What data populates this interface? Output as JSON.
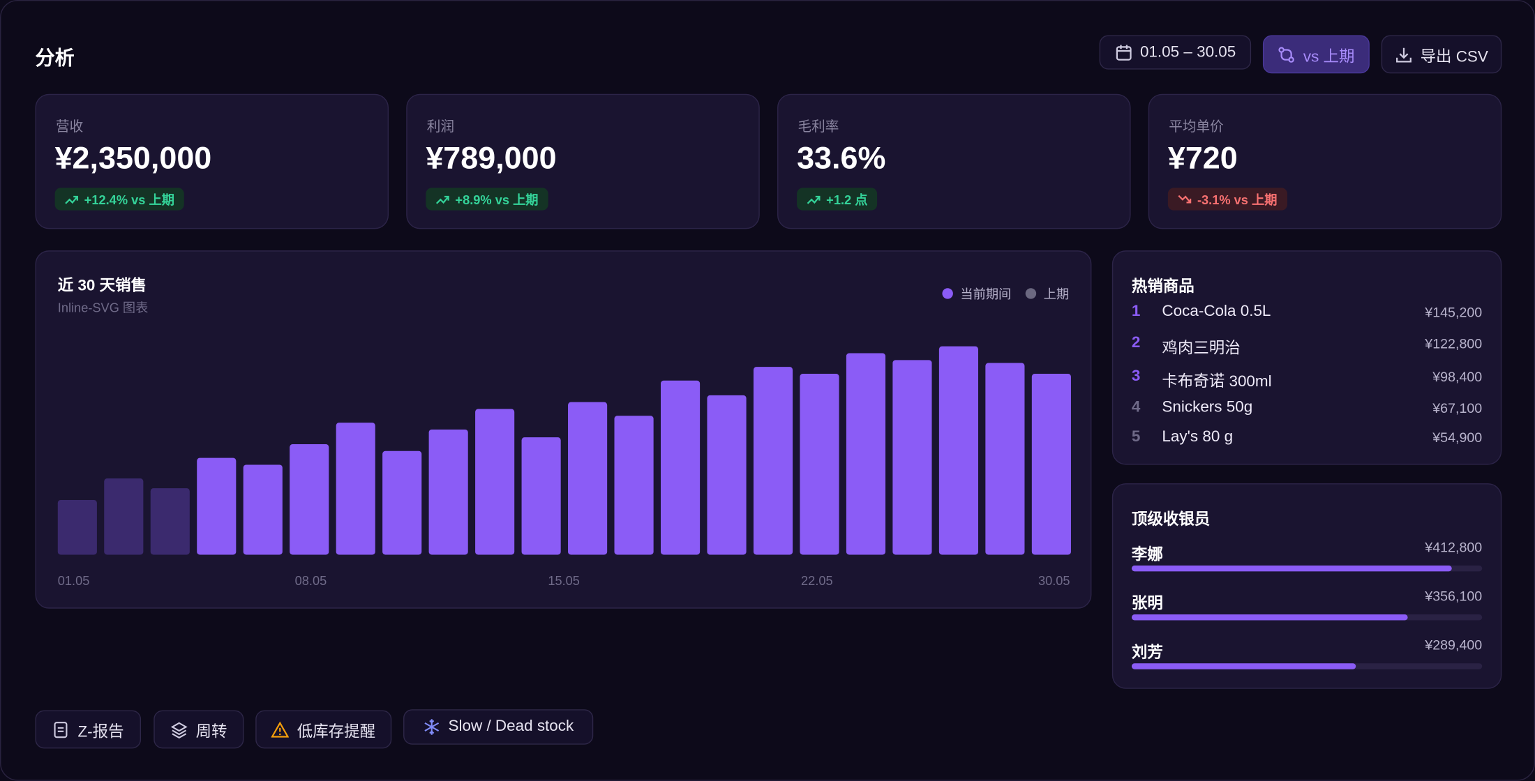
{
  "header": {
    "title": "分析",
    "date_range": "01.05 – 30.05",
    "compare": "vs 上期",
    "export": "导出 CSV"
  },
  "kpis": [
    {
      "label": "营收",
      "value": "¥2,350,000",
      "delta": "+12.4% vs 上期",
      "trend": "up"
    },
    {
      "label": "利润",
      "value": "¥789,000",
      "delta": "+8.9% vs 上期",
      "trend": "up"
    },
    {
      "label": "毛利率",
      "value": "33.6%",
      "delta": "+1.2 点",
      "trend": "up"
    },
    {
      "label": "平均单价",
      "value": "¥720",
      "delta": "-3.1% vs 上期",
      "trend": "down"
    }
  ],
  "chart_data": {
    "type": "bar",
    "title": "近 30 天销售",
    "subtitle": "Inline-SVG 图表",
    "x_labels": [
      "01.05",
      "08.05",
      "15.05",
      "22.05",
      "30.05"
    ],
    "values": [
      56,
      78,
      68,
      99,
      92,
      113,
      135,
      106,
      128,
      149,
      120,
      156,
      142,
      178,
      163,
      192,
      185,
      206,
      199,
      213,
      196,
      185
    ],
    "colors": [
      "#3b2a6e",
      "#3b2a6e",
      "#3b2a6e",
      "#8b5cf6",
      "#8b5cf6",
      "#8b5cf6",
      "#8b5cf6",
      "#8b5cf6",
      "#8b5cf6",
      "#8b5cf6",
      "#8b5cf6",
      "#8b5cf6",
      "#8b5cf6",
      "#8b5cf6",
      "#8b5cf6",
      "#8b5cf6",
      "#8b5cf6",
      "#8b5cf6",
      "#8b5cf6",
      "#8b5cf6",
      "#8b5cf6",
      "#8b5cf6"
    ],
    "legend": [
      {
        "name": "当前期间",
        "color": "#8b5cf6"
      },
      {
        "name": "上期",
        "color": "#6b6880"
      }
    ]
  },
  "top_products": {
    "title": "热销商品",
    "items": [
      {
        "rank": "1",
        "name": "Coca-Cola 0.5L",
        "amount": "¥145,200"
      },
      {
        "rank": "2",
        "name": "鸡肉三明治",
        "amount": "¥122,800"
      },
      {
        "rank": "3",
        "name": "卡布奇诺 300ml",
        "amount": "¥98,400"
      },
      {
        "rank": "4",
        "name": "Snickers 50g",
        "amount": "¥67,100"
      },
      {
        "rank": "5",
        "name": "Lay's 80 g",
        "amount": "¥54,900"
      }
    ]
  },
  "top_cashiers": {
    "type": "bar",
    "title": "顶级收银员",
    "names": [
      "李娜",
      "张明",
      "刘芳"
    ],
    "values": [
      412800,
      356100,
      289400
    ],
    "value_labels": [
      "¥412,800",
      "¥356,100",
      "¥289,400"
    ],
    "xlim": [
      0,
      452000
    ],
    "color": "#8b5cf6"
  },
  "actions": [
    "Z-报告",
    "周转",
    "低库存提醒",
    "Slow / Dead stock"
  ]
}
